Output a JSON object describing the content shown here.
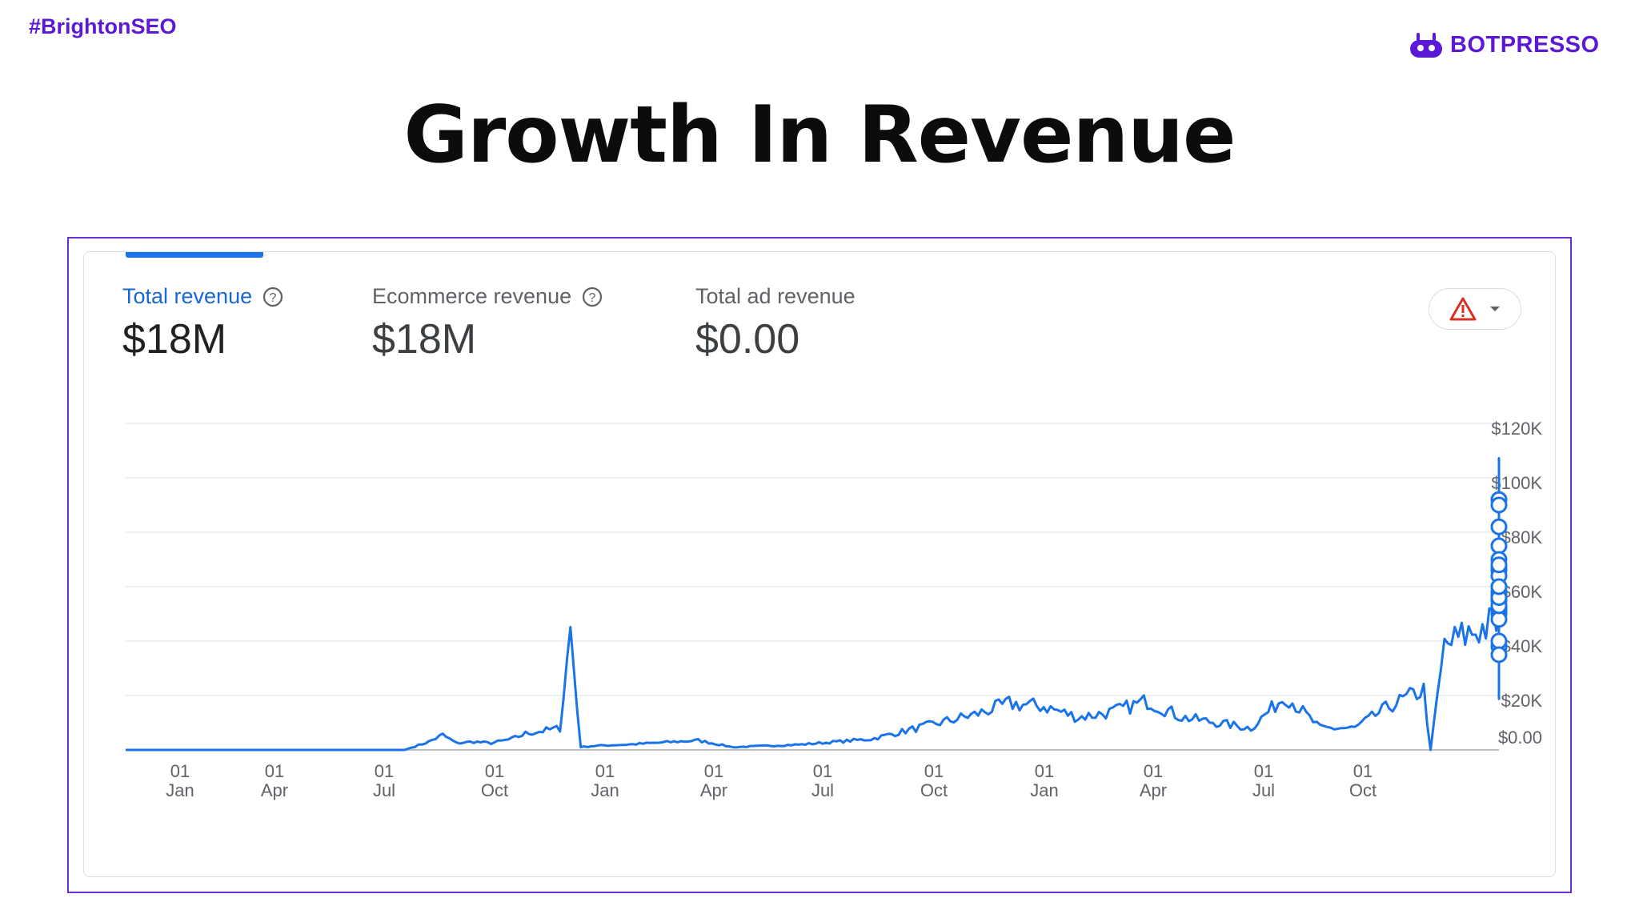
{
  "header": {
    "hashtag": "#BrightonSEO",
    "brand": "BOTPRESSO"
  },
  "slide": {
    "title": "Growth In Revenue"
  },
  "metrics": [
    {
      "label": "Total revenue",
      "value": "$18M"
    },
    {
      "label": "Ecommerce revenue",
      "value": "$18M"
    },
    {
      "label": "Total ad revenue",
      "value": "$0.00"
    }
  ],
  "colors": {
    "accent": "#5b18d6",
    "series": "#1a73e8",
    "alert": "#d93025"
  },
  "icons": {
    "help": "help-circle-icon",
    "alert": "warning-triangle-icon",
    "dropdown": "caret-down-icon",
    "brand": "robot-icon"
  },
  "chart_data": {
    "type": "line",
    "title": "",
    "xlabel": "",
    "ylabel": "",
    "x_ticks": [
      {
        "day": "01",
        "month": "Jan"
      },
      {
        "day": "01",
        "month": "Apr"
      },
      {
        "day": "01",
        "month": "Jul"
      },
      {
        "day": "01",
        "month": "Oct"
      },
      {
        "day": "01",
        "month": "Jan"
      },
      {
        "day": "01",
        "month": "Apr"
      },
      {
        "day": "01",
        "month": "Jul"
      },
      {
        "day": "01",
        "month": "Oct"
      },
      {
        "day": "01",
        "month": "Jan"
      },
      {
        "day": "01",
        "month": "Apr"
      },
      {
        "day": "01",
        "month": "Jul"
      },
      {
        "day": "01",
        "month": "Oct"
      }
    ],
    "y_ticks": [
      "$0.00",
      "$20K",
      "$40K",
      "$60K",
      "$80K",
      "$100K",
      "$120K"
    ],
    "ylim": [
      0,
      120000
    ],
    "grid": true,
    "legend": "none",
    "series": [
      {
        "points_month_offset_vs_value": [
          [
            -2,
            0
          ],
          [
            0,
            0
          ],
          [
            3,
            0
          ],
          [
            6,
            0
          ],
          [
            6.5,
            0
          ],
          [
            7.2,
            3000
          ],
          [
            7.6,
            5500
          ],
          [
            8,
            2500
          ],
          [
            8.5,
            3000
          ],
          [
            9,
            2500
          ],
          [
            9.6,
            4000
          ],
          [
            10,
            6000
          ],
          [
            11,
            8000
          ],
          [
            11.3,
            45000
          ],
          [
            11.6,
            1000
          ],
          [
            12,
            1500
          ],
          [
            13,
            2000
          ],
          [
            15,
            3500
          ],
          [
            16,
            1000
          ],
          [
            17,
            1500
          ],
          [
            18,
            2000
          ],
          [
            19,
            3000
          ],
          [
            20,
            4000
          ],
          [
            21,
            7000
          ],
          [
            22,
            10000
          ],
          [
            23,
            13000
          ],
          [
            24,
            17000
          ],
          [
            25,
            16000
          ],
          [
            26,
            12000
          ],
          [
            27,
            14000
          ],
          [
            28,
            18000
          ],
          [
            29,
            12000
          ],
          [
            30,
            10000
          ],
          [
            31,
            8000
          ],
          [
            32,
            20000
          ],
          [
            33,
            8000
          ],
          [
            34,
            8000
          ],
          [
            35,
            16000
          ],
          [
            36,
            22000
          ],
          [
            36.2,
            0
          ],
          [
            36.6,
            38000
          ],
          [
            37.5,
            44000
          ],
          [
            38.5,
            48000
          ],
          [
            39.5,
            56000
          ],
          [
            40.5,
            59000
          ],
          [
            41.5,
            54000
          ],
          [
            42,
            48000
          ],
          [
            43,
            44000
          ],
          [
            44,
            37000
          ],
          [
            45,
            55000
          ],
          [
            46,
            20000
          ],
          [
            46.5,
            46000
          ],
          [
            47,
            74000
          ],
          [
            47.5,
            44000
          ],
          [
            48.5,
            50000
          ],
          [
            49.5,
            52000
          ],
          [
            50,
            48000
          ],
          [
            50.5,
            56000
          ],
          [
            51,
            58000
          ],
          [
            52,
            54000
          ],
          [
            52.6,
            70000
          ],
          [
            53.3,
            62000
          ],
          [
            53.7,
            70000
          ],
          [
            54.2,
            73000
          ],
          [
            54.5,
            76000
          ],
          [
            54.7,
            99000
          ],
          [
            55,
            92000
          ],
          [
            55.3,
            82000
          ],
          [
            55.6,
            96000
          ],
          [
            55.9,
            84000
          ],
          [
            56.2,
            78000
          ],
          [
            56.5,
            98000
          ]
        ]
      }
    ],
    "highlighted_points_month_offset_vs_value": [
      [
        50.4,
        38000
      ],
      [
        50.9,
        38000
      ],
      [
        51.4,
        40000
      ],
      [
        51.6,
        35000
      ],
      [
        51.8,
        52000
      ],
      [
        52.1,
        51000
      ],
      [
        52.5,
        50000
      ],
      [
        52.7,
        67000
      ],
      [
        52.9,
        58000
      ],
      [
        53.2,
        55000
      ],
      [
        53.5,
        57000
      ],
      [
        53.8,
        52000
      ],
      [
        54.0,
        48000
      ],
      [
        54.2,
        58000
      ],
      [
        54.5,
        55000
      ],
      [
        54.8,
        56000
      ],
      [
        55.0,
        53000
      ],
      [
        55.1,
        57000
      ],
      [
        55.3,
        53000
      ],
      [
        55.5,
        56000
      ],
      [
        55.7,
        60000
      ],
      [
        55.9,
        66000
      ],
      [
        56.0,
        75000
      ],
      [
        56.2,
        70000
      ],
      [
        56.4,
        64000
      ],
      [
        56.4,
        92000
      ],
      [
        56.5,
        90000
      ],
      [
        56.6,
        68000
      ],
      [
        56.8,
        82000
      ],
      [
        57.2,
        60000
      ]
    ]
  }
}
